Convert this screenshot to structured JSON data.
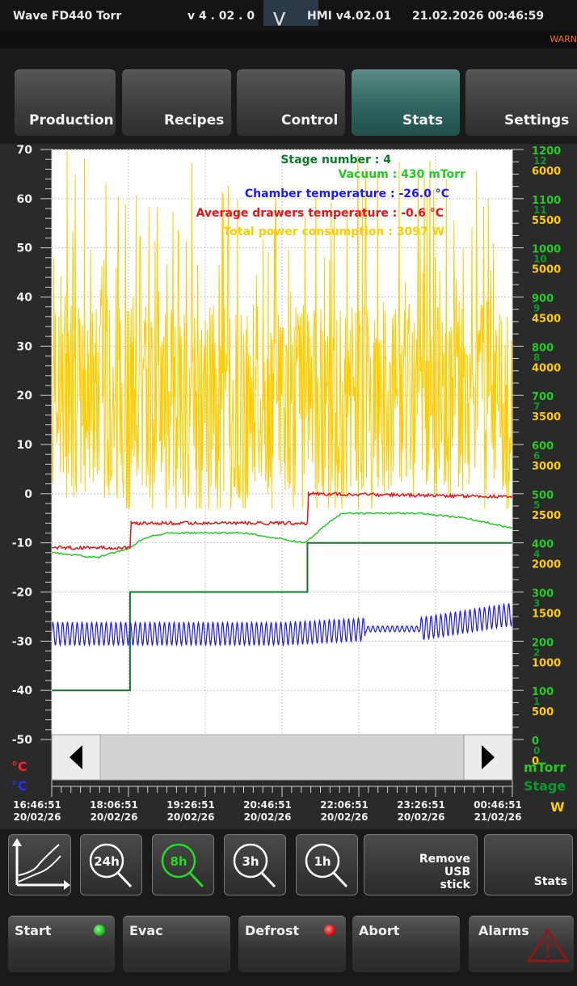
{
  "header": {
    "machine": "Wave FD440 Torr",
    "version_a": "v 4 .   02 .   0",
    "version_b": "HMI v4.02.01",
    "datetime": "21.02.2026 00:46:59",
    "warning": "WARN"
  },
  "tabs": [
    {
      "label": "Production",
      "active": false
    },
    {
      "label": "Recipes",
      "active": false
    },
    {
      "label": "Control",
      "active": false
    },
    {
      "label": "Stats",
      "active": true
    },
    {
      "label": "Settings",
      "active": false
    }
  ],
  "legend": {
    "stage": "Stage number : 4",
    "vacuum": "Vacuum : 430 mTorr",
    "chamber": "Chamber temperature : -26.0 °C",
    "drawers": "Average drawers temperature : -0.6 °C",
    "power": "Total power consumption : 3097 W"
  },
  "colors": {
    "stage": "#0b7a2a",
    "vacuum": "#22cc22",
    "chamber": "#1a1aff",
    "drawers": "#ee1111",
    "power": "#ffcc00"
  },
  "axes": {
    "left_ticks": [
      "70",
      "60",
      "50",
      "40",
      "30",
      "20",
      "10",
      "0",
      "-10",
      "-20",
      "-30",
      "-40",
      "-50"
    ],
    "left_units": [
      "°C",
      "°C"
    ],
    "right_mtorr_ticks": [
      "1200",
      "1100",
      "1000",
      "900",
      "800",
      "700",
      "600",
      "500",
      "400",
      "300",
      "200",
      "100",
      "0"
    ],
    "right_stage_ticks": [
      "12",
      "11",
      "10",
      "9",
      "8",
      "7",
      "6",
      "5",
      "4",
      "3",
      "2",
      "1",
      "0"
    ],
    "right_watt_ticks": [
      "6000",
      "5500",
      "5000",
      "4500",
      "4000",
      "3500",
      "3000",
      "2500",
      "2000",
      "1500",
      "1000",
      "500",
      "0"
    ],
    "right_units": [
      "mTorr",
      "Stage",
      "W"
    ],
    "time_ticks": [
      {
        "time": "16:46:51",
        "date": "20/02/26"
      },
      {
        "time": "18:06:51",
        "date": "20/02/26"
      },
      {
        "time": "19:26:51",
        "date": "20/02/26"
      },
      {
        "time": "20:46:51",
        "date": "20/02/26"
      },
      {
        "time": "22:06:51",
        "date": "20/02/26"
      },
      {
        "time": "23:26:51",
        "date": "20/02/26"
      },
      {
        "time": "00:46:51",
        "date": "21/02/26"
      }
    ]
  },
  "chart_data": {
    "type": "line",
    "x_range": [
      "20/02/26 16:46:51",
      "21/02/26 00:46:51"
    ],
    "ylim_left": [
      -50,
      70
    ],
    "series": [
      {
        "name": "Stage number",
        "axis": "stage",
        "x_fraction": [
          0,
          0.17,
          0.17,
          0.555,
          0.555,
          1.0
        ],
        "values": [
          1,
          1,
          3,
          3,
          4,
          4
        ]
      },
      {
        "name": "Vacuum",
        "axis": "mTorr",
        "x_fraction": [
          0,
          0.1,
          0.17,
          0.2,
          0.25,
          0.3,
          0.42,
          0.55,
          0.6,
          0.63,
          0.8,
          0.9,
          1.0
        ],
        "values": [
          380,
          370,
          390,
          410,
          420,
          420,
          420,
          400,
          440,
          460,
          460,
          450,
          430
        ]
      },
      {
        "name": "Chamber temperature",
        "axis": "°C",
        "x_fraction": [
          0,
          0.17,
          0.3,
          0.5,
          0.7,
          0.8,
          1.0
        ],
        "values": [
          -30,
          -30,
          -30,
          -30,
          -29,
          -29,
          -26
        ]
      },
      {
        "name": "Average drawers temperature",
        "axis": "°C",
        "x_fraction": [
          0,
          0.17,
          0.17,
          0.555,
          0.555,
          1.0
        ],
        "values": [
          -11,
          -11,
          -6,
          -6,
          0,
          -0.6
        ]
      },
      {
        "name": "Total power consumption",
        "axis": "W",
        "note_values_range": [
          2400,
          6000
        ],
        "current": 3097
      }
    ]
  },
  "zoom": {
    "buttons": [
      "24h",
      "8h",
      "3h",
      "1h"
    ],
    "active": "8h",
    "remove_usb": [
      "Remove",
      "USB",
      "stick"
    ],
    "stats": "Stats"
  },
  "controls": {
    "start": "Start",
    "evac": "Evac",
    "defrost": "Defrost",
    "abort": "Abort",
    "alarms": "Alarms",
    "start_led": "#22cc22",
    "defrost_led": "#ff2222"
  }
}
